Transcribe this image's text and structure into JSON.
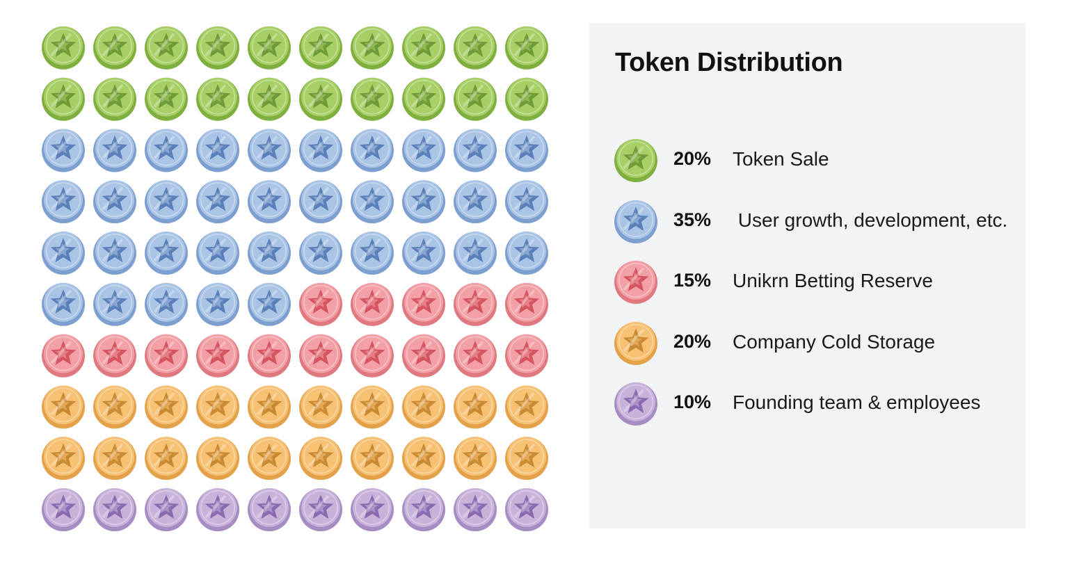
{
  "chart_data": {
    "type": "waffle",
    "title": "Token Distribution",
    "grid": {
      "rows": 10,
      "cols": 10
    },
    "series": [
      {
        "name": "Token Sale",
        "value": 20,
        "label": "20%",
        "color": "#a7cf66",
        "dark": "#7faf3e",
        "star": "#6f9a3a"
      },
      {
        "name": " User growth, development, etc.",
        "value": 35,
        "label": "35%",
        "color": "#aac4e6",
        "dark": "#7d9fcf",
        "star": "#5b7fb8"
      },
      {
        "name": "Unikrn Betting Reserve",
        "value": 15,
        "label": "15%",
        "color": "#f2a0a6",
        "dark": "#e07880",
        "star": "#d4545f"
      },
      {
        "name": "Company Cold Storage",
        "value": 20,
        "label": "20%",
        "color": "#f6c173",
        "dark": "#e3a24a",
        "star": "#c98a34"
      },
      {
        "name": "Founding team & employees",
        "value": 10,
        "label": "10%",
        "color": "#c8b2da",
        "dark": "#a58cc2",
        "star": "#8a6bb0"
      }
    ]
  }
}
